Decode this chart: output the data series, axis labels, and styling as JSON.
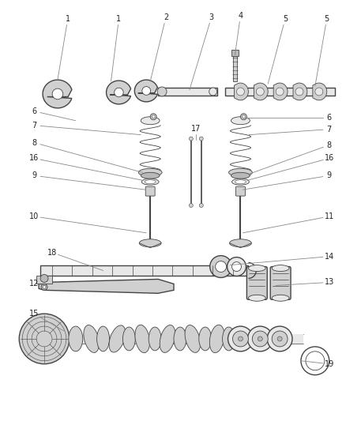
{
  "bg_color": "#ffffff",
  "dc": "#444444",
  "lc": "#666666",
  "fc_light": "#e8e8e8",
  "fc_mid": "#d0d0d0",
  "fc_dark": "#b8b8b8",
  "fig_width": 4.38,
  "fig_height": 5.33,
  "dpi": 100,
  "label_fs": 7,
  "label_color": "#222222",
  "leader_color": "#888888",
  "lw_part": 1.0,
  "lw_thin": 0.6,
  "lw_leader": 0.6
}
